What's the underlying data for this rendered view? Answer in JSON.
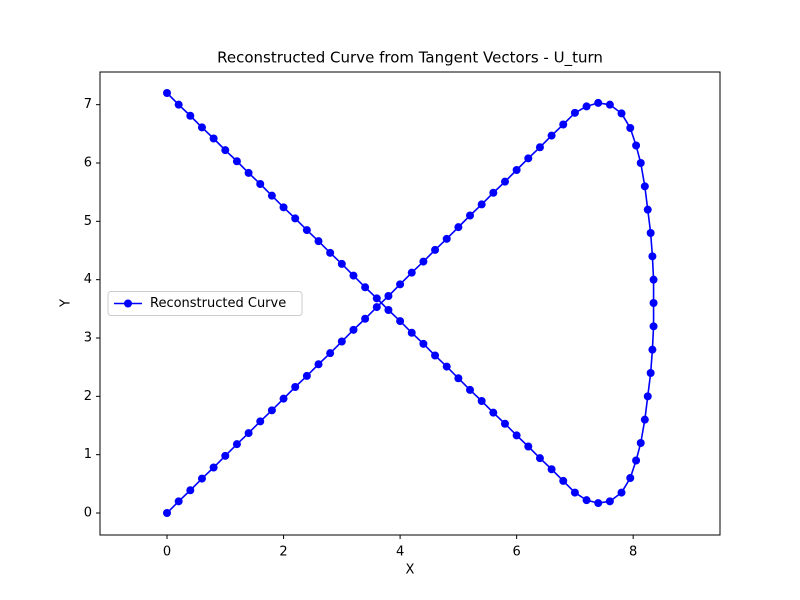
{
  "chart_data": {
    "type": "line",
    "title": "Reconstructed Curve from Tangent Vectors - U_turn",
    "x_label": "X",
    "y_label": "Y",
    "x": [
      0,
      0.2,
      0.4,
      0.6,
      0.8,
      1,
      1.2,
      1.4,
      1.6,
      1.8,
      2,
      2.2,
      2.4,
      2.6,
      2.8,
      3,
      3.2,
      3.4,
      3.6,
      3.8,
      4,
      4.2,
      4.4,
      4.6,
      4.8,
      5,
      5.2,
      5.4,
      5.6,
      5.8,
      6,
      6.2,
      6.4,
      6.6,
      6.8,
      7,
      7.2,
      7.4,
      7.6,
      7.8,
      7.95,
      8.05,
      8.13,
      8.2,
      8.25,
      8.3,
      8.33,
      8.35,
      8.35,
      8.35,
      8.33,
      8.3,
      8.25,
      8.2,
      8.13,
      8.05,
      7.95,
      7.8,
      7.6,
      7.4,
      7.2,
      7,
      6.8,
      6.6,
      6.4,
      6.2,
      6,
      5.8,
      5.6,
      5.4,
      5.2,
      5,
      4.8,
      4.6,
      4.4,
      4.2,
      4,
      3.8,
      3.6,
      3.4,
      3.2,
      3,
      2.8,
      2.6,
      2.4,
      2.2,
      2,
      1.8,
      1.6,
      1.4,
      1.2,
      1,
      0.8,
      0.6,
      0.4,
      0.2,
      0
    ],
    "series": [
      {
        "name": "Reconstructed Curve",
        "color": "#0000ff",
        "values": [
          0,
          0.2,
          0.39,
          0.59,
          0.78,
          0.98,
          1.18,
          1.37,
          1.57,
          1.76,
          1.96,
          2.16,
          2.35,
          2.55,
          2.74,
          2.94,
          3.14,
          3.33,
          3.53,
          3.72,
          3.92,
          4.12,
          4.31,
          4.51,
          4.7,
          4.9,
          5.1,
          5.29,
          5.49,
          5.68,
          5.88,
          6.08,
          6.27,
          6.47,
          6.66,
          6.86,
          6.97,
          7.03,
          7.0,
          6.85,
          6.6,
          6.3,
          6.0,
          5.6,
          5.2,
          4.8,
          4.4,
          4.0,
          3.6,
          3.2,
          2.8,
          2.4,
          2.0,
          1.6,
          1.2,
          0.9,
          0.6,
          0.35,
          0.2,
          0.17,
          0.22,
          0.35,
          0.55,
          0.75,
          0.94,
          1.14,
          1.33,
          1.53,
          1.72,
          1.92,
          2.11,
          2.31,
          2.51,
          2.7,
          2.9,
          3.09,
          3.29,
          3.48,
          3.68,
          3.87,
          4.07,
          4.27,
          4.46,
          4.66,
          4.85,
          5.05,
          5.24,
          5.44,
          5.64,
          5.83,
          6.03,
          6.22,
          6.42,
          6.61,
          6.81,
          7.0,
          7.2
        ]
      }
    ],
    "xlim": [
      -1.15,
      9.49
    ],
    "ylim": [
      -0.377,
      7.56
    ],
    "xticks": [
      0,
      2,
      4,
      6,
      8
    ],
    "yticks": [
      0,
      1,
      2,
      3,
      4,
      5,
      6,
      7
    ],
    "grid": false,
    "legend": "center left"
  }
}
